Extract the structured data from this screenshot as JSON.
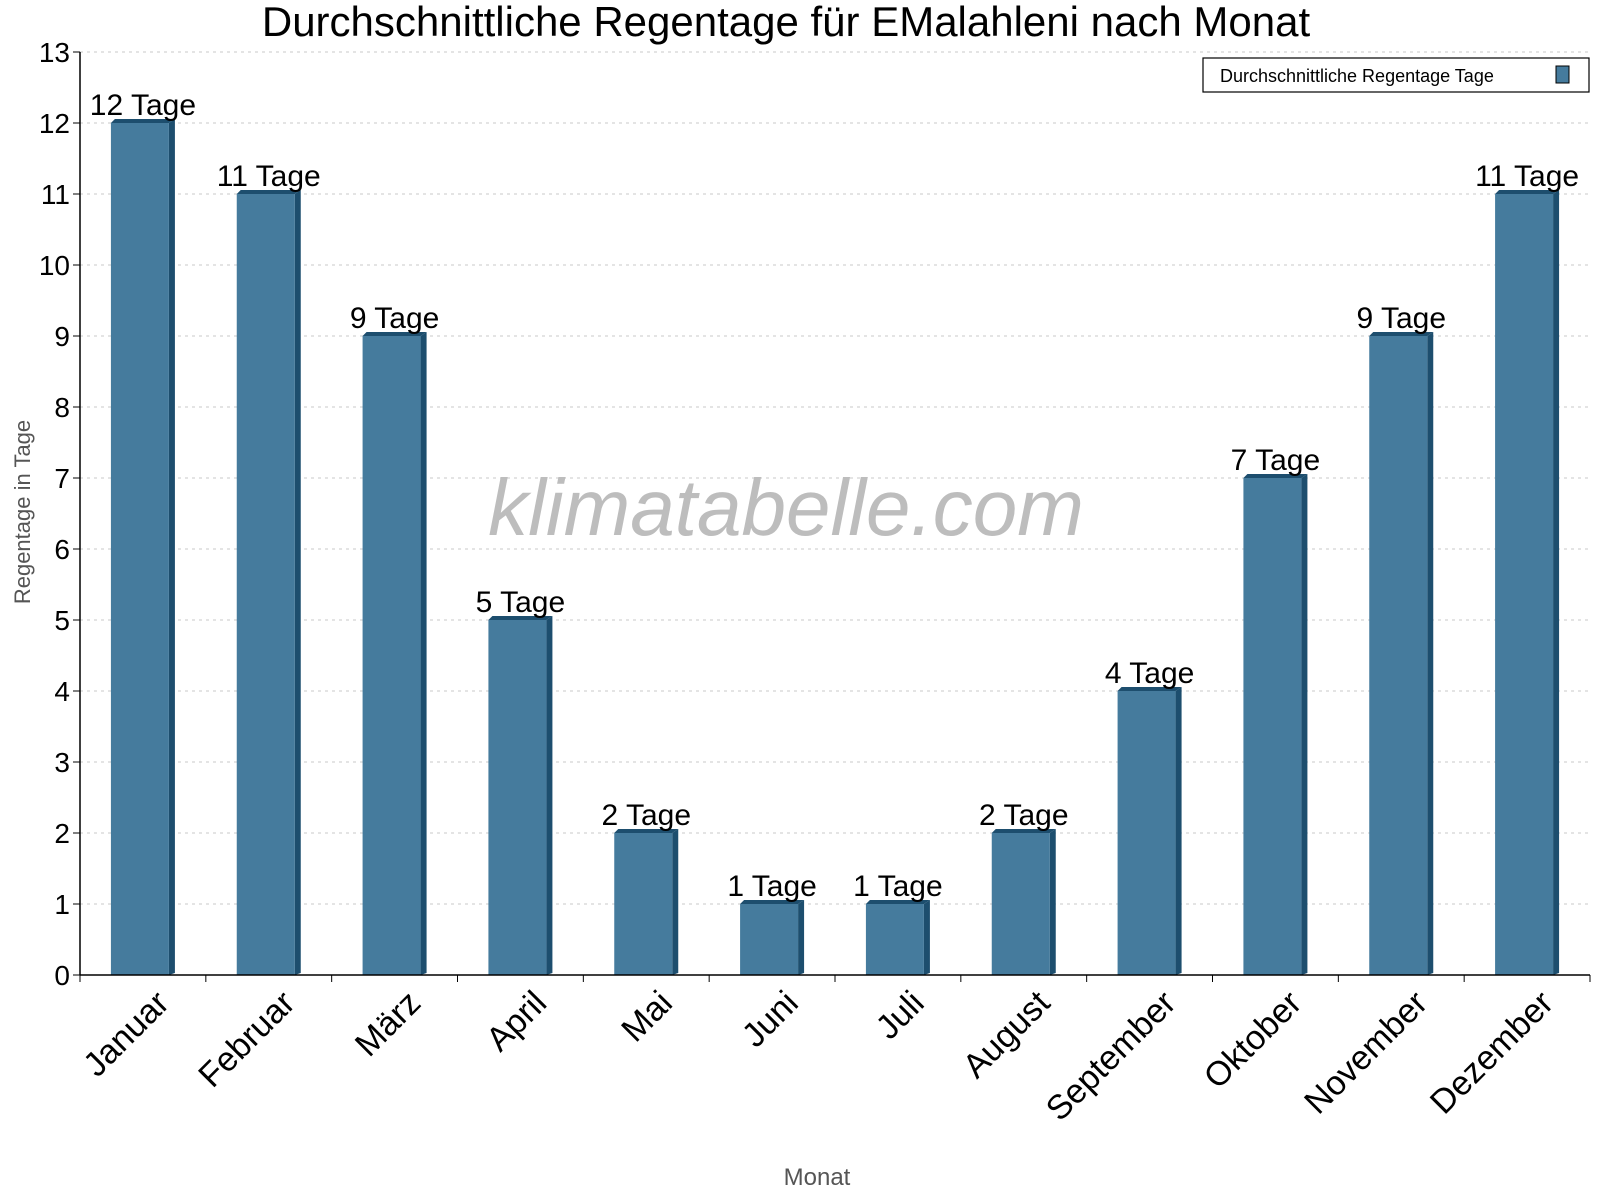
{
  "chart_data": {
    "type": "bar",
    "title": "Durchschnittliche Regentage für EMalahleni nach Monat",
    "xlabel": "Monat",
    "ylabel": "Regentage in Tage",
    "categories": [
      "Januar",
      "Februar",
      "März",
      "April",
      "Mai",
      "Juni",
      "Juli",
      "August",
      "September",
      "Oktober",
      "November",
      "Dezember"
    ],
    "series": [
      {
        "name": "Durchschnittliche Regentage Tage",
        "values": [
          12,
          11,
          9,
          5,
          2,
          1,
          1,
          2,
          4,
          7,
          9,
          11
        ],
        "color": "#457b9d",
        "side_color": "#1d4e6e"
      }
    ],
    "data_labels": [
      "12 Tage",
      "11 Tage",
      "9 Tage",
      "5 Tage",
      "2 Tage",
      "1 Tage",
      "1 Tage",
      "2 Tage",
      "4 Tage",
      "7 Tage",
      "9 Tage",
      "11 Tage"
    ],
    "ylim": [
      0,
      13
    ],
    "yticks": [
      "0",
      "1",
      "2",
      "3",
      "4",
      "5",
      "6",
      "7",
      "8",
      "9",
      "10",
      "11",
      "12",
      "13"
    ],
    "grid": true,
    "legend_position": "top-right",
    "watermark": "klimatabelle.com"
  }
}
